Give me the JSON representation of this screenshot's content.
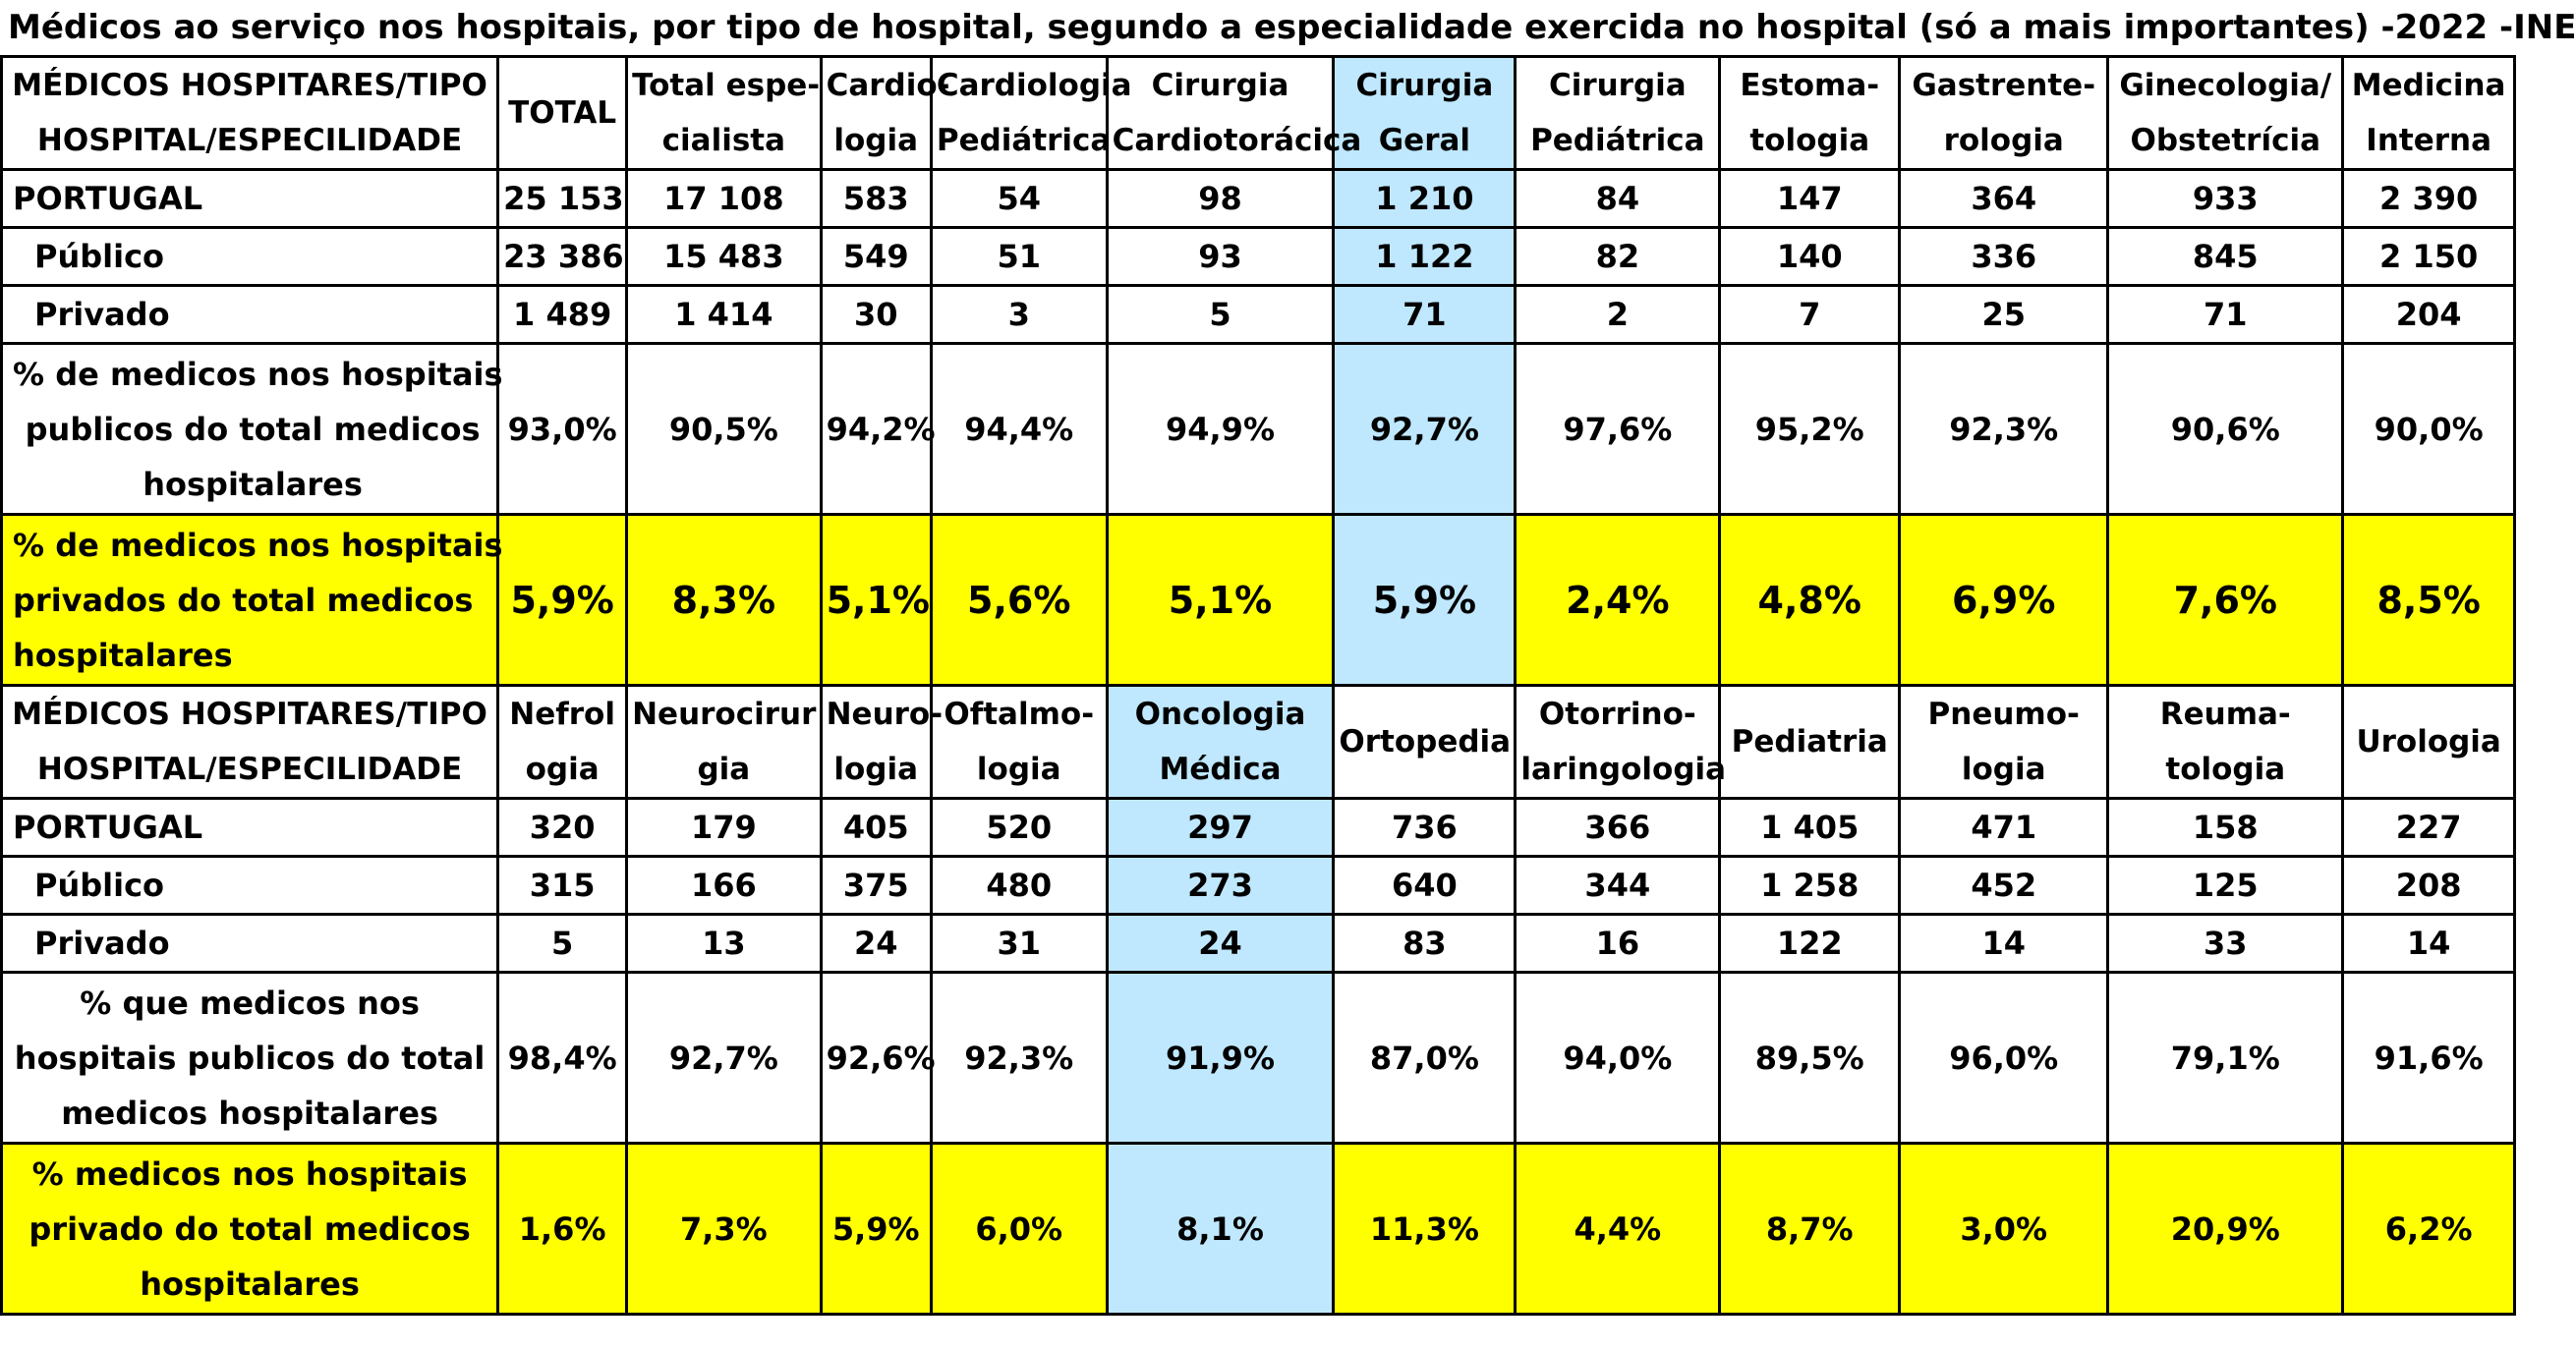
{
  "title": "Médicos ao serviço nos hospitais, por  tipo de hospital, segundo a especialidade exercida no hospital (só a mais importantes)  -2022 -INE",
  "table1": {
    "header": [
      [
        "MÉDICOS HOSPITARES/TIPO",
        "HOSPITAL/ESPECILIDADE"
      ],
      [
        "TOTAL"
      ],
      [
        "Total espe-",
        "cialista"
      ],
      [
        "Cardio-",
        "logia"
      ],
      [
        "Cardiologia",
        "Pediátrica"
      ],
      [
        "Cirurgia",
        "Cardiotorácica"
      ],
      [
        "Cirurgia",
        "Geral"
      ],
      [
        "Cirurgia",
        "Pediátrica"
      ],
      [
        "Estoma-",
        "tologia"
      ],
      [
        "Gastrente-",
        "rologia"
      ],
      [
        "Ginecologia/",
        "Obstetrícia"
      ],
      [
        "Medicina",
        "Interna"
      ]
    ],
    "rows": [
      {
        "label": [
          "PORTUGAL"
        ],
        "values": [
          "25 153",
          "17 108",
          "583",
          "54",
          "98",
          "1 210",
          "84",
          "147",
          "364",
          "933",
          "2 390"
        ]
      },
      {
        "label": [
          "Público"
        ],
        "values": [
          "23 386",
          "15 483",
          "549",
          "51",
          "93",
          "1 122",
          "82",
          "140",
          "336",
          "845",
          "2 150"
        ]
      },
      {
        "label": [
          "Privado"
        ],
        "values": [
          "1 489",
          "1 414",
          "30",
          "3",
          "5",
          "71",
          "2",
          "7",
          "25",
          "71",
          "204"
        ]
      },
      {
        "label": [
          "% de medicos nos hospitais",
          "publicos do total medicos",
          "hospitalares"
        ],
        "values": [
          "93,0%",
          "90,5%",
          "94,2%",
          "94,4%",
          "94,9%",
          "92,7%",
          "97,6%",
          "95,2%",
          "92,3%",
          "90,6%",
          "90,0%"
        ]
      },
      {
        "label": [
          "% de medicos nos hospitais",
          "privados  do  total medicos",
          "hospitalares"
        ],
        "values": [
          "5,9%",
          "8,3%",
          "5,1%",
          "5,6%",
          "5,1%",
          "5,9%",
          "2,4%",
          "4,8%",
          "6,9%",
          "7,6%",
          "8,5%"
        ]
      }
    ]
  },
  "table2": {
    "header": [
      [
        "MÉDICOS HOSPITARES/TIPO",
        "HOSPITAL/ESPECILIDADE"
      ],
      [
        "Nefrol",
        "ogia"
      ],
      [
        "Neurocirur",
        "gia"
      ],
      [
        "Neuro-",
        "logia"
      ],
      [
        "Oftalmo-",
        "logia"
      ],
      [
        "Oncologia",
        "Médica"
      ],
      [
        "Ortopedia"
      ],
      [
        "Otorrino-",
        "laringologia"
      ],
      [
        "Pediatria"
      ],
      [
        "Pneumo-",
        "logia"
      ],
      [
        "Reuma-",
        "tologia"
      ],
      [
        "Urologia"
      ]
    ],
    "rows": [
      {
        "label": [
          "PORTUGAL"
        ],
        "values": [
          "320",
          "179",
          "405",
          "520",
          "297",
          "736",
          "366",
          "1 405",
          "471",
          "158",
          "227"
        ]
      },
      {
        "label": [
          "Público"
        ],
        "values": [
          "315",
          "166",
          "375",
          "480",
          "273",
          "640",
          "344",
          "1 258",
          "452",
          "125",
          "208"
        ]
      },
      {
        "label": [
          "Privado"
        ],
        "values": [
          "5",
          "13",
          "24",
          "31",
          "24",
          "83",
          "16",
          "122",
          "14",
          "33",
          "14"
        ]
      },
      {
        "label": [
          "% que medicos nos",
          "hospitais publicos do total",
          "medicos hospitalares"
        ],
        "values": [
          "98,4%",
          "92,7%",
          "92,6%",
          "92,3%",
          "91,9%",
          "87,0%",
          "94,0%",
          "89,5%",
          "96,0%",
          "79,1%",
          "91,6%"
        ]
      },
      {
        "label": [
          "% medicos nos hospitais",
          "privado do total medicos",
          "hospitalares"
        ],
        "values": [
          "1,6%",
          "7,3%",
          "5,9%",
          "6,0%",
          "8,1%",
          "11,3%",
          "4,4%",
          "8,7%",
          "3,0%",
          "20,9%",
          "6,2%"
        ]
      }
    ]
  },
  "colors": {
    "highlight_yellow": "#ffff00",
    "highlight_blue": "#bfe8ff",
    "border": "#000000"
  }
}
